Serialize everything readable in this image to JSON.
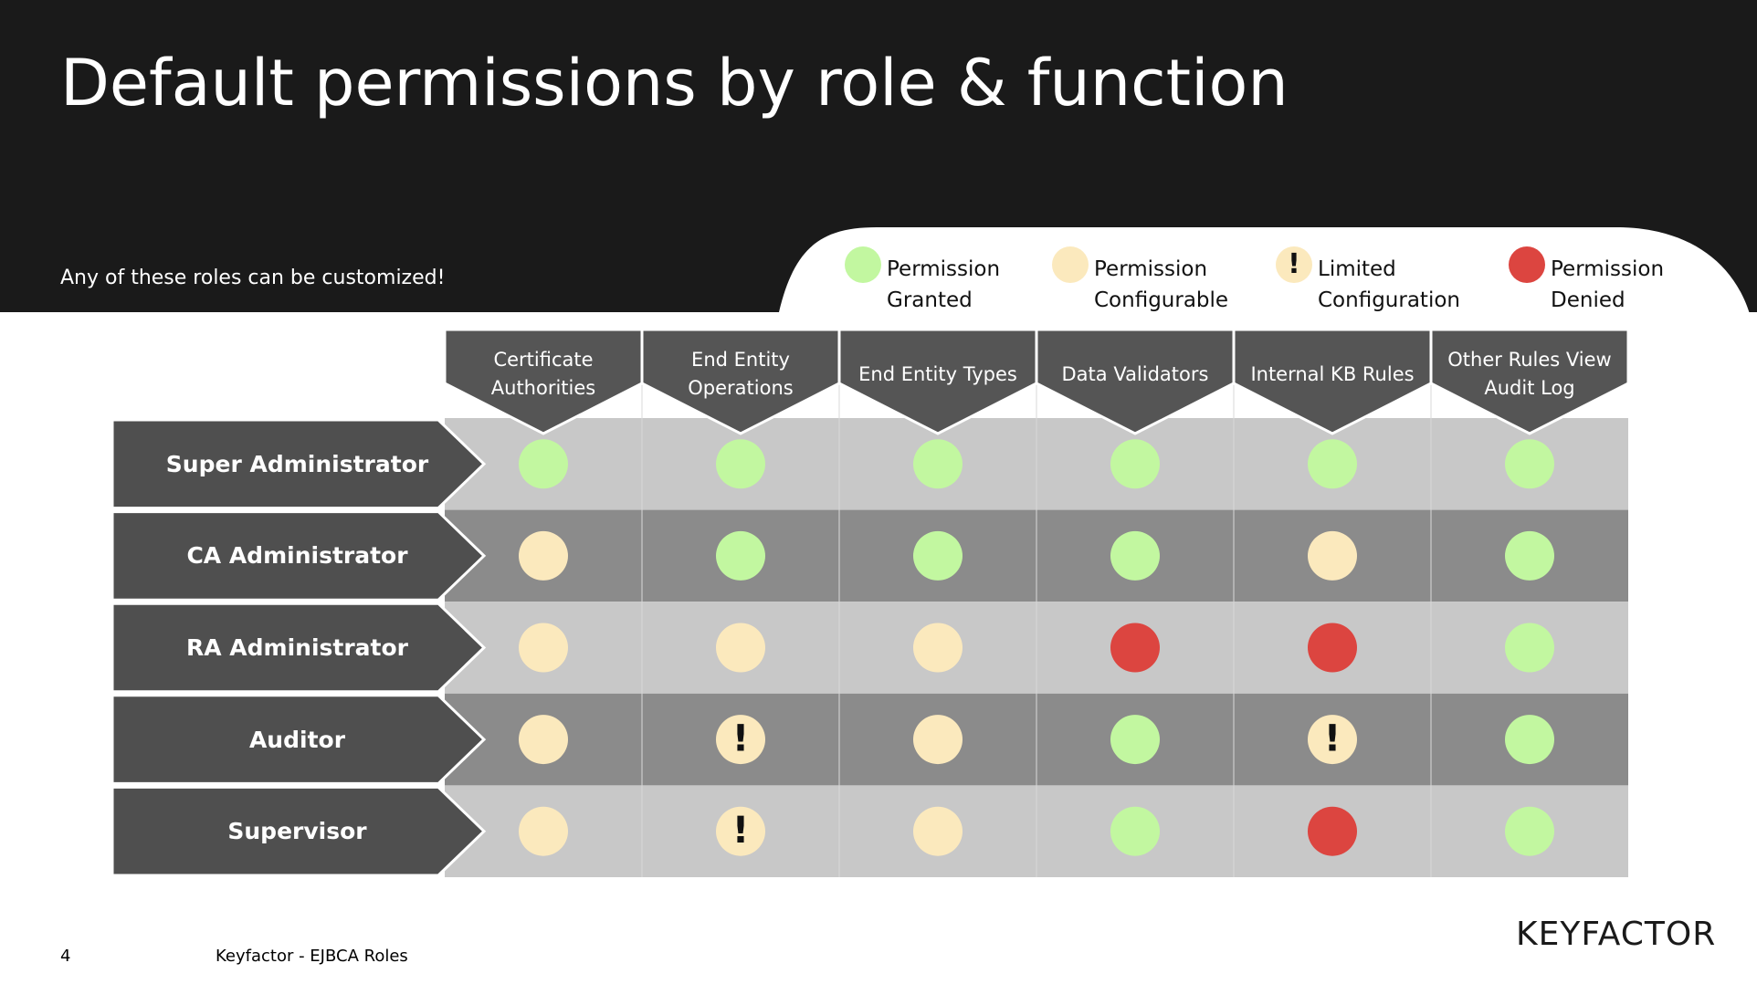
{
  "header": {
    "title": "Default permissions by role & function",
    "subtitle": "Any of these roles can be customized!"
  },
  "legend": [
    {
      "label": "Permission Granted",
      "color": "#c2f7a0"
    },
    {
      "label": "Permission Configurable",
      "color": "#fbe9bd"
    },
    {
      "label": "Limited Configuration",
      "color": "#fbe9bd",
      "mark": "!"
    },
    {
      "label": "Permission Denied",
      "color": "#dc4540"
    }
  ],
  "table": {
    "columns": [
      "Certificate Authorities",
      "End Entity Operations",
      "End Entity Types",
      "Data Validators",
      "Internal KB Rules",
      "Other Rules View Audit Log"
    ],
    "rows": [
      {
        "role": "Super Administrator",
        "cells": [
          0,
          0,
          0,
          0,
          0,
          0
        ]
      },
      {
        "role": "CA Administrator",
        "cells": [
          1,
          0,
          0,
          0,
          1,
          0
        ]
      },
      {
        "role": "RA Administrator",
        "cells": [
          1,
          1,
          1,
          3,
          3,
          0
        ]
      },
      {
        "role": "Auditor",
        "cells": [
          1,
          2,
          1,
          0,
          2,
          0
        ]
      },
      {
        "role": "Supervisor",
        "cells": [
          1,
          2,
          1,
          0,
          3,
          0
        ]
      }
    ]
  },
  "footer": {
    "page": "4",
    "doc": "Keyfactor - EJBCA Roles",
    "logo": "KEYFACTOR"
  }
}
